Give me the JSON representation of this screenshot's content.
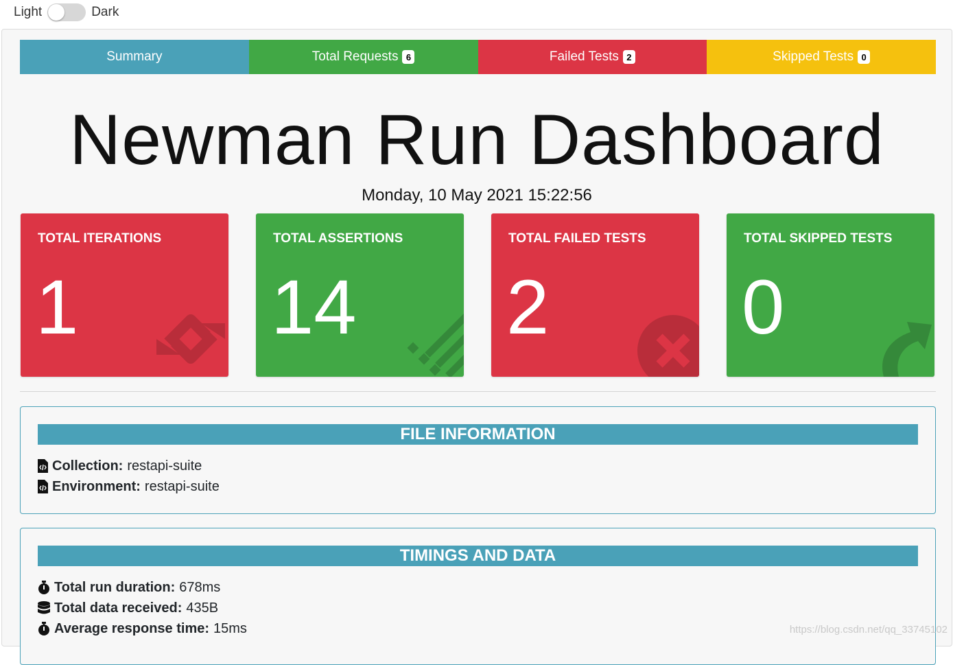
{
  "theme": {
    "light_label": "Light",
    "dark_label": "Dark"
  },
  "colors": {
    "summary": "#4aa1b8",
    "success": "#41a845",
    "danger": "#dc3545",
    "warning": "#f5c10e"
  },
  "tabs": [
    {
      "label": "Summary",
      "badge": ""
    },
    {
      "label": "Total Requests",
      "badge": "6"
    },
    {
      "label": "Failed Tests",
      "badge": "2"
    },
    {
      "label": "Skipped Tests",
      "badge": "0"
    }
  ],
  "title": "Newman Run Dashboard",
  "run_date": "Monday, 10 May 2021 15:22:56",
  "stats": [
    {
      "label": "TOTAL ITERATIONS",
      "value": "1",
      "icon": "sync-icon"
    },
    {
      "label": "TOTAL ASSERTIONS",
      "value": "14",
      "icon": "list-check-icon"
    },
    {
      "label": "TOTAL FAILED TESTS",
      "value": "2",
      "icon": "times-circle-icon"
    },
    {
      "label": "TOTAL SKIPPED TESTS",
      "value": "0",
      "icon": "share-arrow-icon"
    }
  ],
  "file_info": {
    "header": "FILE INFORMATION",
    "collection_label": "Collection:",
    "collection_value": "restapi-suite",
    "environment_label": "Environment:",
    "environment_value": "restapi-suite"
  },
  "timings": {
    "header": "TIMINGS AND DATA",
    "duration_label": "Total run duration:",
    "duration_value": "678ms",
    "data_label": "Total data received:",
    "data_value": "435B",
    "avg_label": "Average response time:",
    "avg_value": "15ms"
  },
  "watermark": "https://blog.csdn.net/qq_33745102"
}
